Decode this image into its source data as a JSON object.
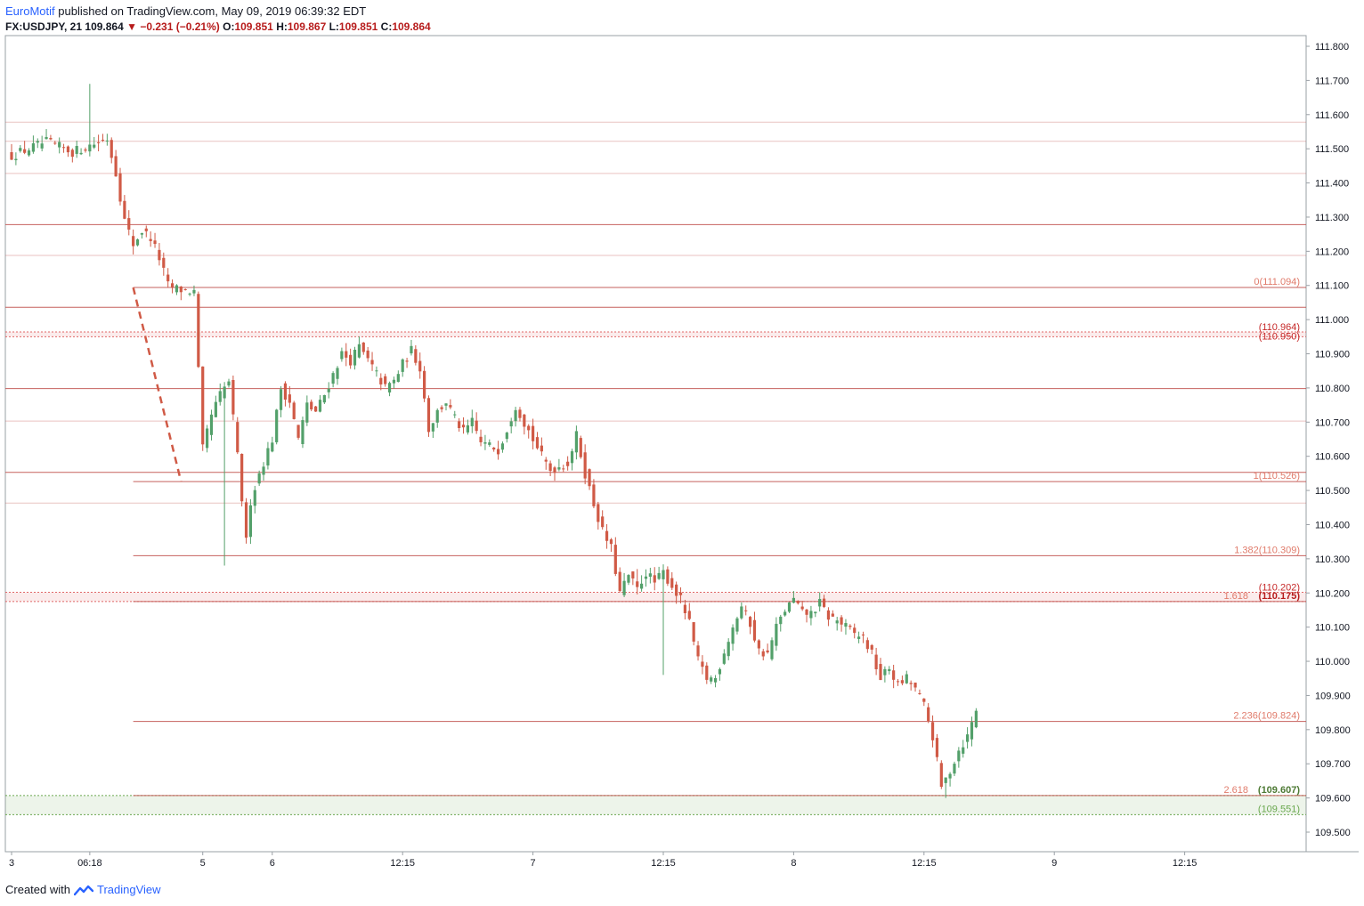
{
  "header": {
    "author": "EuroMotif",
    "published_text": "published on TradingView.com, May 09, 2019 06:39:32 EDT",
    "symbol": "FX:USDJPY, 21",
    "last": "109.864",
    "change": "−0.231 (−0.21%)",
    "o_label": "O:",
    "o": "109.851",
    "h_label": "H:",
    "h": "109.867",
    "l_label": "L:",
    "l": "109.851",
    "c_label": "C:",
    "c": "109.864"
  },
  "footer": {
    "created_with": "Created with",
    "brand": "TradingView"
  },
  "colors": {
    "up": "#53a06a",
    "down": "#d05a46",
    "level_line": "#c0504d",
    "fib_text": "#e07b6b",
    "green_zone": "#6aa84f"
  },
  "chart_data": {
    "type": "candlestick",
    "symbol": "FX:USDJPY",
    "interval": "21",
    "ylim": [
      109.5,
      111.8
    ],
    "y_ticks": [
      "111.800",
      "111.700",
      "111.600",
      "111.500",
      "111.400",
      "111.300",
      "111.200",
      "111.100",
      "111.000",
      "110.900",
      "110.800",
      "110.700",
      "110.600",
      "110.500",
      "110.400",
      "110.300",
      "110.200",
      "110.100",
      "110.000",
      "109.900",
      "109.800",
      "109.700",
      "109.600",
      "109.500"
    ],
    "x_ticks": [
      {
        "label": "3",
        "i": 0
      },
      {
        "label": "06:18",
        "i": 18
      },
      {
        "label": "5",
        "i": 44
      },
      {
        "label": "6",
        "i": 60
      },
      {
        "label": "12:15",
        "i": 90
      },
      {
        "label": "7",
        "i": 120
      },
      {
        "label": "12:15",
        "i": 150
      },
      {
        "label": "8",
        "i": 180
      },
      {
        "label": "12:15",
        "i": 210
      },
      {
        "label": "9",
        "i": 240
      },
      {
        "label": "12:15",
        "i": 270
      }
    ],
    "horizontal_levels": [
      {
        "price": 111.578,
        "style": "thin"
      },
      {
        "price": 111.522,
        "style": "thin"
      },
      {
        "price": 111.428,
        "style": "thin"
      },
      {
        "price": 111.278,
        "style": "solid"
      },
      {
        "price": 111.188,
        "style": "thin"
      },
      {
        "price": 111.036,
        "style": "solid"
      },
      {
        "price": 110.798,
        "style": "solid"
      },
      {
        "price": 110.703,
        "style": "thin"
      },
      {
        "price": 110.553,
        "style": "solid"
      },
      {
        "price": 110.463,
        "style": "thin"
      }
    ],
    "zones": [
      {
        "top": 110.964,
        "bottom": 110.95,
        "color": "#e06666",
        "labels": [
          "(110.964)",
          "(110.950)"
        ]
      },
      {
        "top": 110.202,
        "bottom": 110.175,
        "color": "#e06666",
        "labels": [
          "(110.202)"
        ]
      },
      {
        "top": 109.607,
        "bottom": 109.551,
        "color": "#6aa84f",
        "labels": [
          "(109.551)"
        ]
      }
    ],
    "fib_levels": [
      {
        "ratio": "0",
        "price": 111.094,
        "label": "0(111.094)"
      },
      {
        "ratio": "1",
        "price": 110.526,
        "label": "1(110.526)"
      },
      {
        "ratio": "1.382",
        "price": 110.309,
        "label": "1.382(110.309)"
      },
      {
        "ratio": "1.618",
        "price": 110.175,
        "label_ratio": "1.618",
        "label_price": "(110.175)"
      },
      {
        "ratio": "2.236",
        "price": 109.824,
        "label": "2.236(109.824)"
      },
      {
        "ratio": "2.618",
        "price": 109.607,
        "label_ratio": "2.618",
        "label_price": "(109.607)"
      }
    ],
    "trend_line": {
      "from": {
        "i": 28,
        "price": 111.094
      },
      "to": {
        "i": 39,
        "price": 110.526
      }
    },
    "path": [
      [
        0,
        111.48
      ],
      [
        6,
        111.51
      ],
      [
        8,
        111.52
      ],
      [
        14,
        111.49
      ],
      [
        20,
        111.52
      ],
      [
        22,
        111.53
      ],
      [
        24,
        111.43
      ],
      [
        26,
        111.29
      ],
      [
        28,
        111.22
      ],
      [
        30,
        111.26
      ],
      [
        32,
        111.24
      ],
      [
        34,
        111.18
      ],
      [
        36,
        111.1
      ],
      [
        38,
        111.09
      ],
      [
        42,
        111.08
      ],
      [
        44,
        110.62
      ],
      [
        46,
        110.72
      ],
      [
        48,
        110.78
      ],
      [
        50,
        110.82
      ],
      [
        52,
        110.6
      ],
      [
        54,
        110.35
      ],
      [
        55,
        110.47
      ],
      [
        57,
        110.55
      ],
      [
        60,
        110.65
      ],
      [
        62,
        110.8
      ],
      [
        64,
        110.76
      ],
      [
        66,
        110.65
      ],
      [
        68,
        110.75
      ],
      [
        70,
        110.73
      ],
      [
        72,
        110.78
      ],
      [
        74,
        110.84
      ],
      [
        76,
        110.9
      ],
      [
        78,
        110.88
      ],
      [
        80,
        110.92
      ],
      [
        82,
        110.88
      ],
      [
        86,
        110.8
      ],
      [
        88,
        110.82
      ],
      [
        90,
        110.87
      ],
      [
        92,
        110.91
      ],
      [
        94,
        110.86
      ],
      [
        96,
        110.68
      ],
      [
        98,
        110.73
      ],
      [
        100,
        110.76
      ],
      [
        102,
        110.71
      ],
      [
        104,
        110.67
      ],
      [
        106,
        110.7
      ],
      [
        108,
        110.64
      ],
      [
        112,
        110.62
      ],
      [
        114,
        110.68
      ],
      [
        116,
        110.75
      ],
      [
        118,
        110.7
      ],
      [
        120,
        110.65
      ],
      [
        122,
        110.6
      ],
      [
        124,
        110.56
      ],
      [
        128,
        110.58
      ],
      [
        130,
        110.66
      ],
      [
        132,
        110.55
      ],
      [
        134,
        110.46
      ],
      [
        136,
        110.38
      ],
      [
        138,
        110.33
      ],
      [
        140,
        110.2
      ],
      [
        142,
        110.25
      ],
      [
        144,
        110.21
      ],
      [
        146,
        110.26
      ],
      [
        148,
        110.23
      ],
      [
        150,
        110.26
      ],
      [
        152,
        110.22
      ],
      [
        154,
        110.18
      ],
      [
        156,
        110.11
      ],
      [
        158,
        110.0
      ],
      [
        160,
        109.95
      ],
      [
        162,
        109.95
      ],
      [
        164,
        110.03
      ],
      [
        166,
        110.1
      ],
      [
        168,
        110.16
      ],
      [
        170,
        110.11
      ],
      [
        172,
        110.03
      ],
      [
        174,
        110.02
      ],
      [
        176,
        110.1
      ],
      [
        178,
        110.15
      ],
      [
        180,
        110.18
      ],
      [
        182,
        110.14
      ],
      [
        184,
        110.14
      ],
      [
        186,
        110.17
      ],
      [
        188,
        110.13
      ],
      [
        190,
        110.12
      ],
      [
        192,
        110.1
      ],
      [
        194,
        110.08
      ],
      [
        196,
        110.07
      ],
      [
        198,
        110.02
      ],
      [
        200,
        109.95
      ],
      [
        202,
        109.98
      ],
      [
        204,
        109.93
      ],
      [
        206,
        109.95
      ],
      [
        208,
        109.92
      ],
      [
        210,
        109.87
      ],
      [
        212,
        109.78
      ],
      [
        214,
        109.63
      ],
      [
        216,
        109.68
      ],
      [
        218,
        109.74
      ],
      [
        220,
        109.78
      ],
      [
        222,
        109.86
      ]
    ],
    "wicks": [
      {
        "i": 18,
        "high": 111.69
      },
      {
        "i": 49,
        "low": 110.28
      },
      {
        "i": 144,
        "high": 110.27
      },
      {
        "i": 150,
        "low": 109.96
      },
      {
        "i": 215,
        "low": 109.6
      }
    ]
  }
}
